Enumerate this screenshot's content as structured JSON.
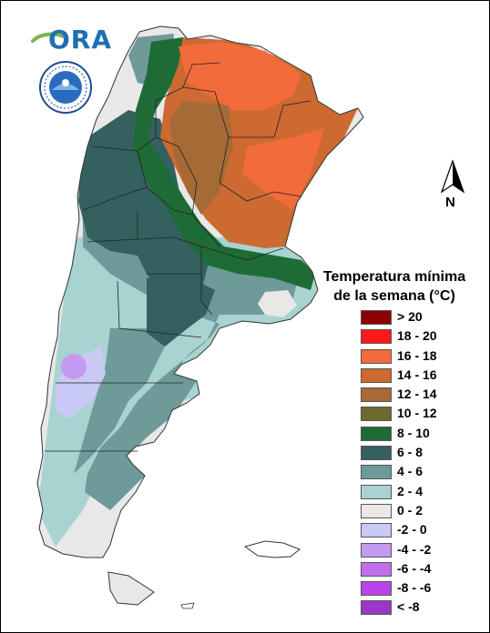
{
  "logo": {
    "text": "ORA",
    "seal_text": "SERVICIO METEOROLOGICO NACIONAL ARGENTINA"
  },
  "north_arrow": {
    "label": "N"
  },
  "legend": {
    "title_line1": "Temperatura mínima",
    "title_line2": "de la semana (°C)",
    "items": [
      {
        "label": "> 20",
        "color": "#8b0000"
      },
      {
        "label": "18 - 20",
        "color": "#ff1a1a"
      },
      {
        "label": "16 - 18",
        "color": "#f26b3a"
      },
      {
        "label": "14 - 16",
        "color": "#cc6a32"
      },
      {
        "label": "12 - 14",
        "color": "#a66a36"
      },
      {
        "label": "10 - 12",
        "color": "#6b6b2f"
      },
      {
        "label": "8 - 10",
        "color": "#1f6b36"
      },
      {
        "label": "6 - 8",
        "color": "#356060"
      },
      {
        "label": "4 - 6",
        "color": "#6e9a99"
      },
      {
        "label": "2 - 4",
        "color": "#a8d3d0"
      },
      {
        "label": "0 - 2",
        "color": "#e8e8e8"
      },
      {
        "label": "-2 - 0",
        "color": "#c9c9f5"
      },
      {
        "label": "-4 - -2",
        "color": "#c29bf0"
      },
      {
        "label": "-6 - -4",
        "color": "#c070ec"
      },
      {
        "label": "-8 - -6",
        "color": "#bb44e8"
      },
      {
        "label": "< -8",
        "color": "#9a36c8"
      }
    ]
  }
}
